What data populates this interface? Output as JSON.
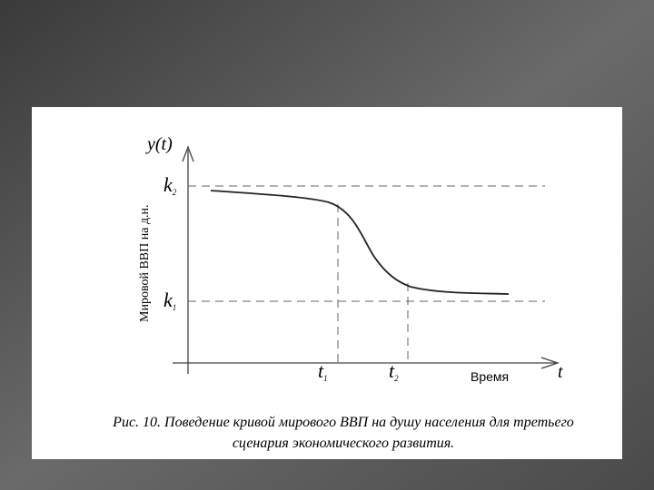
{
  "diagram": {
    "y_axis_label": "y(t)",
    "x_axis_label": "t",
    "y_axis_title": "Мировой ВВП на д.н.",
    "x_axis_title": "Время",
    "levels": [
      {
        "main": "k",
        "sub": "2"
      },
      {
        "main": "k",
        "sub": "1"
      }
    ],
    "times": [
      {
        "main": "t",
        "sub": "1"
      },
      {
        "main": "t",
        "sub": "2"
      }
    ],
    "caption": [
      "Рис. 10. Поведение кривой мирового ВВП на душу населения для третьего",
      "сценария экономического развития."
    ]
  }
}
